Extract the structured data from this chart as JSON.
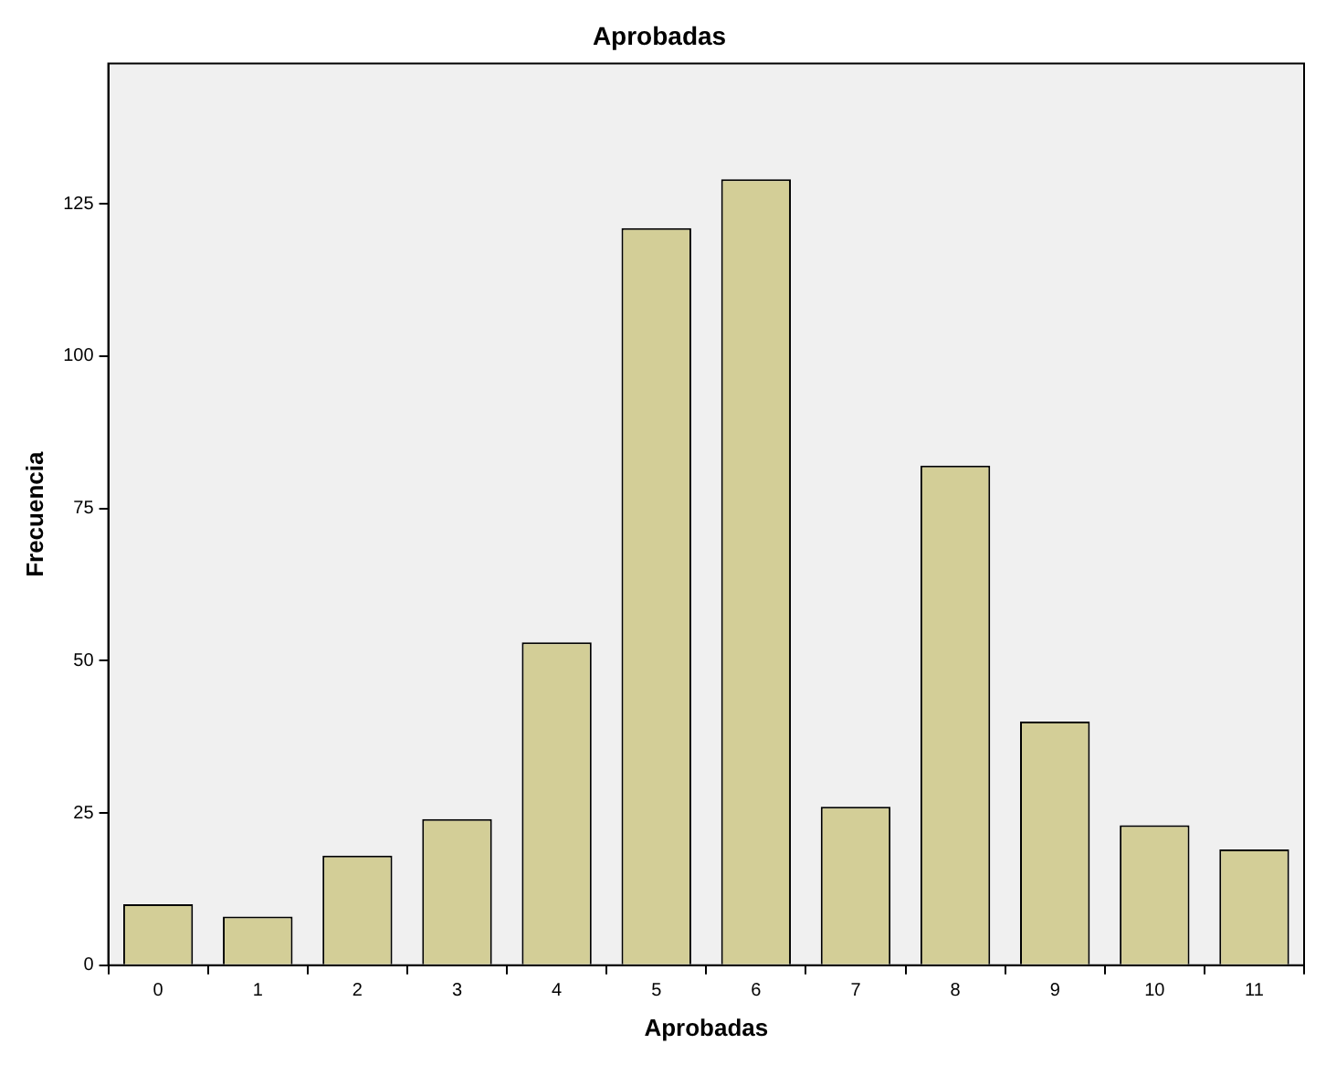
{
  "chart_data": {
    "type": "bar",
    "title": "Aprobadas",
    "xlabel": "Aprobadas",
    "ylabel": "Frecuencia",
    "categories": [
      "0",
      "1",
      "2",
      "3",
      "4",
      "5",
      "6",
      "7",
      "8",
      "9",
      "10",
      "11"
    ],
    "values": [
      10,
      8,
      18,
      24,
      53,
      121,
      129,
      26,
      82,
      40,
      23,
      19
    ],
    "color": "#d3ce97",
    "ylim": [
      0,
      148
    ],
    "yticks": [
      0,
      25,
      50,
      75,
      100,
      125
    ],
    "grid": false,
    "legend": false
  }
}
